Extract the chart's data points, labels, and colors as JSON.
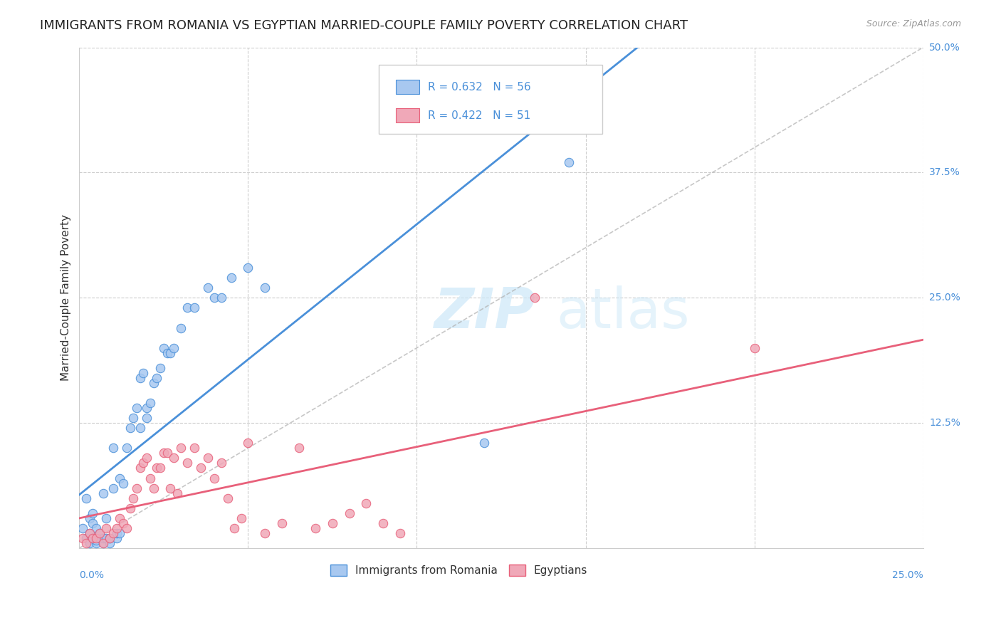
{
  "title": "IMMIGRANTS FROM ROMANIA VS EGYPTIAN MARRIED-COUPLE FAMILY POVERTY CORRELATION CHART",
  "source": "Source: ZipAtlas.com",
  "ylabel": "Married-Couple Family Poverty",
  "xlim": [
    0.0,
    0.25
  ],
  "ylim": [
    0.0,
    0.5
  ],
  "romania_R": 0.632,
  "romania_N": 56,
  "egypt_R": 0.422,
  "egypt_N": 51,
  "romania_color": "#a8c8f0",
  "egypt_color": "#f0a8b8",
  "romania_line_color": "#4a90d9",
  "egypt_line_color": "#e8607a",
  "ref_line_color": "#b0b0b0",
  "background_color": "#ffffff",
  "watermark_color": "#cce8f8",
  "legend_label_1": "Immigrants from Romania",
  "legend_label_2": "Egyptians",
  "romania_scatter_x": [
    0.001,
    0.002,
    0.002,
    0.003,
    0.003,
    0.003,
    0.004,
    0.004,
    0.004,
    0.005,
    0.005,
    0.005,
    0.006,
    0.006,
    0.007,
    0.007,
    0.007,
    0.008,
    0.008,
    0.009,
    0.009,
    0.01,
    0.01,
    0.011,
    0.011,
    0.012,
    0.012,
    0.013,
    0.014,
    0.015,
    0.016,
    0.017,
    0.018,
    0.018,
    0.019,
    0.02,
    0.02,
    0.021,
    0.022,
    0.023,
    0.024,
    0.025,
    0.026,
    0.027,
    0.028,
    0.03,
    0.032,
    0.034,
    0.038,
    0.04,
    0.042,
    0.045,
    0.05,
    0.055,
    0.12,
    0.145
  ],
  "romania_scatter_y": [
    0.02,
    0.01,
    0.05,
    0.005,
    0.03,
    0.015,
    0.01,
    0.025,
    0.035,
    0.005,
    0.008,
    0.02,
    0.01,
    0.015,
    0.005,
    0.01,
    0.055,
    0.01,
    0.03,
    0.005,
    0.01,
    0.06,
    0.1,
    0.01,
    0.015,
    0.015,
    0.07,
    0.065,
    0.1,
    0.12,
    0.13,
    0.14,
    0.12,
    0.17,
    0.175,
    0.13,
    0.14,
    0.145,
    0.165,
    0.17,
    0.18,
    0.2,
    0.195,
    0.195,
    0.2,
    0.22,
    0.24,
    0.24,
    0.26,
    0.25,
    0.25,
    0.27,
    0.28,
    0.26,
    0.105,
    0.385
  ],
  "egypt_scatter_x": [
    0.001,
    0.002,
    0.003,
    0.004,
    0.005,
    0.006,
    0.007,
    0.008,
    0.009,
    0.01,
    0.011,
    0.012,
    0.013,
    0.014,
    0.015,
    0.016,
    0.017,
    0.018,
    0.019,
    0.02,
    0.021,
    0.022,
    0.023,
    0.024,
    0.025,
    0.026,
    0.027,
    0.028,
    0.029,
    0.03,
    0.032,
    0.034,
    0.036,
    0.038,
    0.04,
    0.042,
    0.044,
    0.046,
    0.048,
    0.05,
    0.055,
    0.06,
    0.065,
    0.07,
    0.075,
    0.08,
    0.085,
    0.09,
    0.095,
    0.135,
    0.2
  ],
  "egypt_scatter_y": [
    0.01,
    0.005,
    0.015,
    0.01,
    0.01,
    0.015,
    0.005,
    0.02,
    0.01,
    0.015,
    0.02,
    0.03,
    0.025,
    0.02,
    0.04,
    0.05,
    0.06,
    0.08,
    0.085,
    0.09,
    0.07,
    0.06,
    0.08,
    0.08,
    0.095,
    0.095,
    0.06,
    0.09,
    0.055,
    0.1,
    0.085,
    0.1,
    0.08,
    0.09,
    0.07,
    0.085,
    0.05,
    0.02,
    0.03,
    0.105,
    0.015,
    0.025,
    0.1,
    0.02,
    0.025,
    0.035,
    0.045,
    0.025,
    0.015,
    0.25,
    0.2
  ]
}
